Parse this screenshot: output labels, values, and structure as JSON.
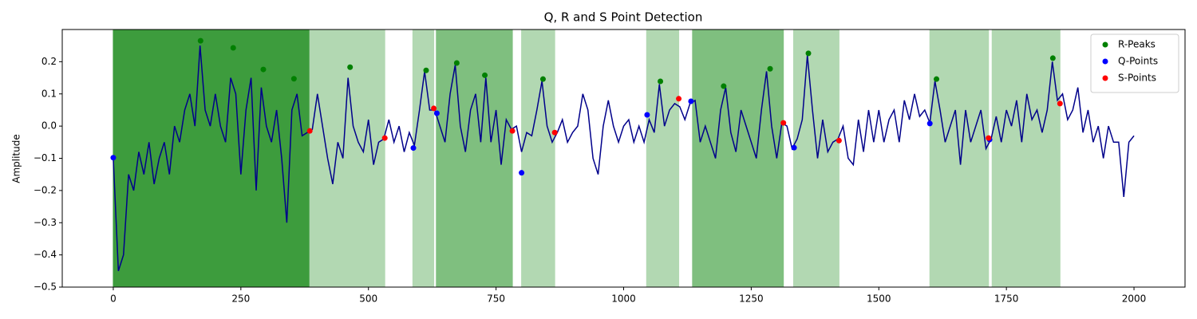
{
  "chart_data": {
    "type": "line",
    "title": "Q, R and S Point Detection",
    "ylabel": "Amplitude",
    "xlim": [
      -100,
      2100
    ],
    "ylim": [
      -0.5,
      0.3
    ],
    "xticks": [
      0,
      250,
      500,
      750,
      1000,
      1250,
      1500,
      1750,
      2000
    ],
    "yticks": [
      {
        "value": -0.5,
        "label": "−0.5"
      },
      {
        "value": -0.4,
        "label": "−0.4"
      },
      {
        "value": -0.3,
        "label": "−0.3"
      },
      {
        "value": -0.2,
        "label": "−0.2"
      },
      {
        "value": -0.1,
        "label": "−0.1"
      },
      {
        "value": 0,
        "label": "0.0"
      },
      0.1,
      0.2
    ],
    "legend": "upper right",
    "spans": [
      {
        "range": [
          0,
          385
        ],
        "color": "#3d9c3d"
      },
      {
        "range": [
          385,
          532
        ],
        "color": "#b2d8b2"
      },
      {
        "range": [
          587,
          628
        ],
        "color": "#b2d8b2"
      },
      {
        "range": [
          633,
          782
        ],
        "color": "#7fbf7f"
      },
      {
        "range": [
          800,
          865
        ],
        "color": "#b2d8b2"
      },
      {
        "range": [
          1045,
          1108
        ],
        "color": "#b2d8b2"
      },
      {
        "range": [
          1135,
          1313
        ],
        "color": "#7fbf7f"
      },
      {
        "range": [
          1333,
          1422
        ],
        "color": "#b2d8b2"
      },
      {
        "range": [
          1600,
          1715
        ],
        "color": "#b2d8b2"
      },
      {
        "range": [
          1722,
          1855
        ],
        "color": "#b2d8b2"
      }
    ],
    "line": {
      "color": "#00008b",
      "x": [
        0,
        10,
        20,
        30,
        40,
        50,
        60,
        70,
        80,
        90,
        100,
        110,
        120,
        130,
        140,
        150,
        160,
        170,
        180,
        190,
        200,
        210,
        220,
        230,
        240,
        250,
        260,
        270,
        280,
        290,
        300,
        310,
        320,
        330,
        340,
        350,
        360,
        370,
        380,
        390,
        400,
        410,
        420,
        430,
        440,
        450,
        460,
        470,
        480,
        490,
        500,
        510,
        520,
        530,
        540,
        550,
        560,
        570,
        580,
        590,
        600,
        610,
        620,
        630,
        640,
        650,
        660,
        670,
        680,
        690,
        700,
        710,
        720,
        730,
        740,
        750,
        760,
        770,
        780,
        790,
        800,
        810,
        820,
        830,
        840,
        850,
        860,
        870,
        880,
        890,
        900,
        910,
        920,
        930,
        940,
        950,
        960,
        970,
        980,
        990,
        1000,
        1010,
        1020,
        1030,
        1040,
        1050,
        1060,
        1070,
        1080,
        1090,
        1100,
        1110,
        1120,
        1130,
        1140,
        1150,
        1160,
        1170,
        1180,
        1190,
        1200,
        1210,
        1220,
        1230,
        1240,
        1250,
        1260,
        1270,
        1280,
        1290,
        1300,
        1310,
        1320,
        1330,
        1340,
        1350,
        1360,
        1370,
        1380,
        1390,
        1400,
        1410,
        1420,
        1430,
        1440,
        1450,
        1460,
        1470,
        1480,
        1490,
        1500,
        1510,
        1520,
        1530,
        1540,
        1550,
        1560,
        1570,
        1580,
        1590,
        1600,
        1610,
        1620,
        1630,
        1640,
        1650,
        1660,
        1670,
        1680,
        1690,
        1700,
        1710,
        1720,
        1730,
        1740,
        1750,
        1760,
        1770,
        1780,
        1790,
        1800,
        1810,
        1820,
        1830,
        1840,
        1850,
        1860,
        1870,
        1880,
        1890,
        1900,
        1910,
        1920,
        1930,
        1940,
        1950,
        1960,
        1970,
        1980,
        1990,
        2000
      ],
      "values": [
        -0.1,
        -0.45,
        -0.4,
        -0.15,
        -0.2,
        -0.08,
        -0.15,
        -0.05,
        -0.18,
        -0.1,
        -0.05,
        -0.15,
        0.0,
        -0.05,
        0.05,
        0.1,
        0.0,
        0.25,
        0.05,
        0.0,
        0.1,
        0.0,
        -0.05,
        0.15,
        0.1,
        -0.15,
        0.05,
        0.15,
        -0.2,
        0.12,
        0.0,
        -0.05,
        0.05,
        -0.1,
        -0.3,
        0.05,
        0.1,
        -0.03,
        -0.02,
        -0.01,
        0.1,
        0.0,
        -0.1,
        -0.18,
        -0.05,
        -0.1,
        0.15,
        0.0,
        -0.05,
        -0.08,
        0.02,
        -0.12,
        -0.05,
        -0.04,
        0.02,
        -0.05,
        0.0,
        -0.08,
        -0.02,
        -0.06,
        0.05,
        0.17,
        0.05,
        0.05,
        0.0,
        -0.05,
        0.1,
        0.19,
        0.0,
        -0.08,
        0.05,
        0.1,
        -0.05,
        0.15,
        -0.05,
        0.05,
        -0.12,
        0.02,
        -0.01,
        0.0,
        -0.08,
        -0.02,
        -0.03,
        0.05,
        0.14,
        0.0,
        -0.05,
        -0.02,
        0.02,
        -0.05,
        -0.02,
        0.0,
        0.1,
        0.05,
        -0.1,
        -0.15,
        0.0,
        0.08,
        0.0,
        -0.05,
        0.0,
        0.02,
        -0.05,
        0.0,
        -0.05,
        0.02,
        -0.02,
        0.13,
        0.0,
        0.05,
        0.07,
        0.06,
        0.02,
        0.07,
        0.08,
        -0.05,
        0.0,
        -0.05,
        -0.1,
        0.05,
        0.12,
        -0.02,
        -0.08,
        0.05,
        0.0,
        -0.05,
        -0.1,
        0.05,
        0.17,
        0.0,
        -0.1,
        0.01,
        0.0,
        -0.07,
        -0.04,
        0.02,
        0.22,
        0.05,
        -0.1,
        0.02,
        -0.08,
        -0.05,
        -0.04,
        0.0,
        -0.1,
        -0.12,
        0.02,
        -0.08,
        0.05,
        -0.05,
        0.05,
        -0.05,
        0.02,
        0.05,
        -0.05,
        0.08,
        0.02,
        0.1,
        0.03,
        0.05,
        0.01,
        0.14,
        0.05,
        -0.05,
        0.0,
        0.05,
        -0.12,
        0.05,
        -0.05,
        0.0,
        0.05,
        -0.07,
        -0.04,
        0.03,
        -0.05,
        0.05,
        0.0,
        0.08,
        -0.05,
        0.1,
        0.02,
        0.05,
        -0.02,
        0.05,
        0.2,
        0.08,
        0.1,
        0.02,
        0.05,
        0.12,
        -0.02,
        0.05,
        -0.05,
        0.0,
        -0.1,
        0.0,
        -0.05,
        -0.05,
        -0.22,
        -0.05,
        -0.03
      ]
    },
    "series": [
      {
        "name": "R-Peaks",
        "color": "#008000",
        "x": [
          171,
          235,
          294,
          354,
          464,
          613,
          673,
          728,
          842,
          1072,
          1196,
          1287,
          1362,
          1613,
          1841
        ],
        "values": [
          0.265,
          0.243,
          0.176,
          0.147,
          0.183,
          0.173,
          0.196,
          0.158,
          0.146,
          0.139,
          0.124,
          0.178,
          0.226,
          0.146,
          0.211
        ]
      },
      {
        "name": "Q-Points",
        "color": "#0000ff",
        "x": [
          0,
          588,
          634,
          800,
          1046,
          1132,
          1334,
          1600,
          1717
        ],
        "values": [
          -0.098,
          -0.068,
          0.04,
          -0.145,
          0.035,
          0.077,
          -0.067,
          0.008,
          -0.042
        ]
      },
      {
        "name": "S-Points",
        "color": "#ff0000",
        "x": [
          385,
          532,
          628,
          782,
          865,
          1108,
          1313,
          1422,
          1715,
          1855
        ],
        "values": [
          -0.015,
          -0.037,
          0.055,
          -0.015,
          -0.02,
          0.085,
          0.01,
          -0.045,
          -0.037,
          0.07
        ]
      }
    ]
  }
}
